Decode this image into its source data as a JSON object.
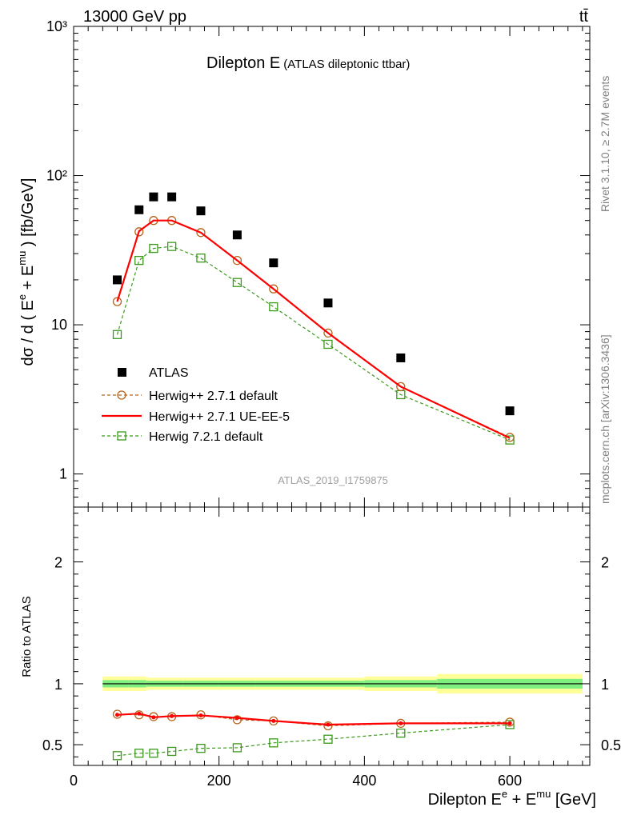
{
  "header": {
    "left": "13000 GeV pp",
    "right": "tt̄"
  },
  "side_texts": {
    "rivet": "Rivet 3.1.10, ≥ 2.7M events",
    "mcplots": "mcplots.cern.ch [arXiv:1306.3436]"
  },
  "title": {
    "main": "Dilepton E",
    "sub": "(ATLAS dileptonic ttbar)"
  },
  "watermark": "ATLAS_2019_I1759875",
  "ylabel_parts": {
    "a": "dσ / d ( E",
    "b": "e",
    "c": " + E",
    "d": "mu",
    "e": " ) [fb/GeV]"
  },
  "xlabel_parts": {
    "a": "Dilepton E",
    "b": "e",
    "c": " + E",
    "d": "mu",
    "e": " [GeV]"
  },
  "ratio_ylabel": "Ratio to ATLAS",
  "legend": [
    {
      "label": "ATLAS",
      "style": "data"
    },
    {
      "label": "Herwig++ 2.7.1 default",
      "style": "circle"
    },
    {
      "label": "Herwig++ 2.7.1 UE-EE-5",
      "style": "line"
    },
    {
      "label": "Herwig 7.2.1 default",
      "style": "square"
    }
  ],
  "colors": {
    "data": "#000000",
    "herwigpp_default": "#b5651d",
    "herwigpp_ueee5": "#ff0000",
    "herwig7": "#3a9a1a",
    "band_inner": "#7fef7f",
    "band_outer": "#ffff99"
  },
  "chart_data": [
    {
      "type": "scatter",
      "panel": "main",
      "yscale": "log",
      "xlim": [
        0,
        710
      ],
      "ylim": [
        0.6,
        1000
      ],
      "y_ticks": [
        {
          "value": 1,
          "label": "1"
        },
        {
          "value": 10,
          "label": "10"
        },
        {
          "value": 100,
          "label": "10²"
        },
        {
          "value": 1000,
          "label": "10³"
        }
      ],
      "x": [
        60,
        90,
        110,
        135,
        175,
        225,
        275,
        350,
        450,
        600
      ],
      "series": [
        {
          "name": "ATLAS",
          "values": [
            20,
            59,
            72,
            72,
            58,
            40,
            26,
            14,
            6,
            2.65
          ]
        },
        {
          "name": "Herwig++ 2.7.1 default",
          "values": [
            14.3,
            42,
            50,
            50,
            41.5,
            27,
            17.4,
            8.8,
            3.85,
            1.76
          ]
        },
        {
          "name": "Herwig++ 2.7.1 UE-EE-5",
          "values": [
            14.3,
            42.5,
            50,
            50,
            41.5,
            27,
            17.4,
            8.8,
            3.85,
            1.74
          ]
        },
        {
          "name": "Herwig 7.2.1 default",
          "values": [
            8.6,
            27,
            32.5,
            33.5,
            28,
            19.2,
            13.2,
            7.4,
            3.4,
            1.69
          ]
        }
      ]
    },
    {
      "type": "line",
      "panel": "ratio",
      "ylabel": "Ratio to ATLAS",
      "xlabel": "Dilepton Eᵉ + Eᵐᵘ [GeV]",
      "xlim": [
        0,
        710
      ],
      "ylim": [
        0.33,
        2.45
      ],
      "x_ticks": [
        0,
        200,
        400,
        600
      ],
      "y_ticks": [
        0.5,
        1,
        2
      ],
      "x": [
        60,
        90,
        110,
        135,
        175,
        225,
        275,
        350,
        450,
        600
      ],
      "bin_edges": [
        40,
        75,
        100,
        120,
        150,
        200,
        250,
        300,
        400,
        500,
        700
      ],
      "band_inner": [
        0.03,
        0.03,
        0.025,
        0.025,
        0.025,
        0.025,
        0.025,
        0.025,
        0.03,
        0.04
      ],
      "band_outer": [
        0.06,
        0.06,
        0.05,
        0.05,
        0.05,
        0.05,
        0.05,
        0.05,
        0.06,
        0.08
      ],
      "series": [
        {
          "name": "Herwig++ 2.7.1 default",
          "values": [
            0.75,
            0.745,
            0.73,
            0.73,
            0.745,
            0.705,
            0.695,
            0.655,
            0.675,
            0.685
          ]
        },
        {
          "name": "Herwig++ 2.7.1 UE-EE-5",
          "values": [
            0.745,
            0.755,
            0.725,
            0.735,
            0.74,
            0.72,
            0.695,
            0.665,
            0.675,
            0.675
          ]
        },
        {
          "name": "Herwig 7.2.1 default",
          "values": [
            0.41,
            0.43,
            0.43,
            0.445,
            0.47,
            0.475,
            0.515,
            0.545,
            0.595,
            0.665
          ]
        }
      ]
    }
  ]
}
